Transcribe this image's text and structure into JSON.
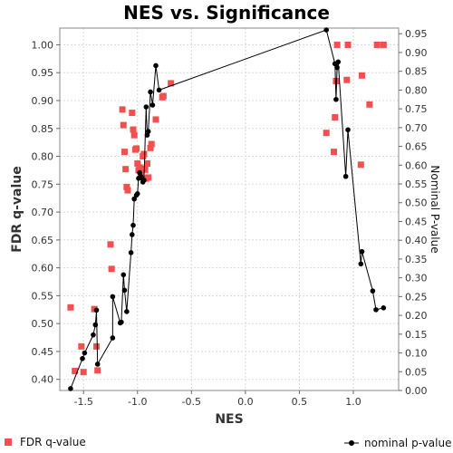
{
  "chart_data": {
    "type": "scatter",
    "title": "NES vs. Significance",
    "xlabel": "NES",
    "ylabel_left": "FDR q-value",
    "ylabel_right": "Nominal P-value",
    "xlim": [
      -1.72,
      1.42
    ],
    "ylim_left": [
      0.38,
      1.03
    ],
    "ylim_right": [
      0.0,
      0.965
    ],
    "xticks": [
      "-1.5",
      "-1.0",
      "-0.5",
      "0.0",
      "0.5",
      "1.0"
    ],
    "xtick_values": [
      -1.5,
      -1.0,
      -0.5,
      0.0,
      0.5,
      1.0
    ],
    "yticks_left": [
      "0.40",
      "0.45",
      "0.50",
      "0.55",
      "0.60",
      "0.65",
      "0.70",
      "0.75",
      "0.80",
      "0.85",
      "0.90",
      "0.95",
      "1.00"
    ],
    "ytick_left_values": [
      0.4,
      0.45,
      0.5,
      0.55,
      0.6,
      0.65,
      0.7,
      0.75,
      0.8,
      0.85,
      0.9,
      0.95,
      1.0
    ],
    "yticks_right": [
      "0.00",
      "0.05",
      "0.10",
      "0.15",
      "0.20",
      "0.25",
      "0.30",
      "0.35",
      "0.40",
      "0.45",
      "0.50",
      "0.55",
      "0.60",
      "0.65",
      "0.70",
      "0.75",
      "0.80",
      "0.85",
      "0.90",
      "0.95"
    ],
    "ytick_right_values": [
      0.0,
      0.05,
      0.1,
      0.15,
      0.2,
      0.25,
      0.3,
      0.35,
      0.4,
      0.45,
      0.5,
      0.55,
      0.6,
      0.65,
      0.7,
      0.75,
      0.8,
      0.85,
      0.9,
      0.95
    ],
    "grid": true,
    "legend_position": "bottom",
    "series": [
      {
        "name": "FDR q-value",
        "axis": "left",
        "style": "square-markers",
        "color": "#f05050",
        "points": [
          [
            -1.62,
            0.529
          ],
          [
            -1.58,
            0.415
          ],
          [
            -1.52,
            0.459
          ],
          [
            -1.5,
            0.413
          ],
          [
            -1.4,
            0.526
          ],
          [
            -1.38,
            0.459
          ],
          [
            -1.37,
            0.416
          ],
          [
            -1.25,
            0.642
          ],
          [
            -1.24,
            0.598
          ],
          [
            -1.14,
            0.884
          ],
          [
            -1.13,
            0.856
          ],
          [
            -1.12,
            0.808
          ],
          [
            -1.11,
            0.777
          ],
          [
            -1.1,
            0.745
          ],
          [
            -1.09,
            0.739
          ],
          [
            -1.05,
            0.878
          ],
          [
            -1.04,
            0.848
          ],
          [
            -1.03,
            0.838
          ],
          [
            -1.02,
            0.812
          ],
          [
            -1.01,
            0.814
          ],
          [
            -1.0,
            0.787
          ],
          [
            -0.99,
            0.775
          ],
          [
            -0.98,
            0.78
          ],
          [
            -0.97,
            0.77
          ],
          [
            -0.96,
            0.778
          ],
          [
            -0.95,
            0.8
          ],
          [
            -0.94,
            0.804
          ],
          [
            -0.93,
            0.776
          ],
          [
            -0.92,
            0.76
          ],
          [
            -0.91,
            0.787
          ],
          [
            -0.9,
            0.762
          ],
          [
            -0.88,
            0.815
          ],
          [
            -0.87,
            0.822
          ],
          [
            -0.83,
            0.866
          ],
          [
            -0.77,
            0.906
          ],
          [
            -0.76,
            0.908
          ],
          [
            -0.69,
            0.931
          ],
          [
            0.75,
            0.842
          ],
          [
            0.82,
            0.808
          ],
          [
            0.83,
            0.87
          ],
          [
            0.84,
            0.935
          ],
          [
            0.85,
            1.0
          ],
          [
            0.94,
            0.937
          ],
          [
            0.95,
            1.0
          ],
          [
            1.07,
            0.785
          ],
          [
            1.08,
            0.945
          ],
          [
            1.15,
            0.893
          ],
          [
            1.22,
            1.0
          ],
          [
            1.28,
            1.0
          ]
        ]
      },
      {
        "name": "nominal p-value",
        "axis": "right",
        "style": "line-circle-markers",
        "color": "#000000",
        "points": [
          [
            -1.62,
            0.005
          ],
          [
            -1.51,
            0.085
          ],
          [
            -1.49,
            0.1
          ],
          [
            -1.41,
            0.148
          ],
          [
            -1.39,
            0.175
          ],
          [
            -1.38,
            0.214
          ],
          [
            -1.37,
            0.07
          ],
          [
            -1.23,
            0.14
          ],
          [
            -1.23,
            0.25
          ],
          [
            -1.16,
            0.18
          ],
          [
            -1.15,
            0.182
          ],
          [
            -1.13,
            0.308
          ],
          [
            -1.12,
            0.267
          ],
          [
            -1.1,
            0.21
          ],
          [
            -1.06,
            0.367
          ],
          [
            -1.05,
            0.415
          ],
          [
            -1.04,
            0.44
          ],
          [
            -1.03,
            0.51
          ],
          [
            -1.01,
            0.52
          ],
          [
            -1.0,
            0.524
          ],
          [
            -0.99,
            0.565
          ],
          [
            -0.98,
            0.58
          ],
          [
            -0.97,
            0.57
          ],
          [
            -0.96,
            0.565
          ],
          [
            -0.95,
            0.555
          ],
          [
            -0.94,
            0.56
          ],
          [
            -0.92,
            0.755
          ],
          [
            -0.91,
            0.68
          ],
          [
            -0.9,
            0.69
          ],
          [
            -0.88,
            0.795
          ],
          [
            -0.86,
            0.76
          ],
          [
            -0.83,
            0.865
          ],
          [
            -0.8,
            0.8
          ],
          [
            0.75,
            0.96
          ],
          [
            0.83,
            0.87
          ],
          [
            0.84,
            0.775
          ],
          [
            0.85,
            0.86
          ],
          [
            0.86,
            0.875
          ],
          [
            0.93,
            0.57
          ],
          [
            0.95,
            0.694
          ],
          [
            1.07,
            0.337
          ],
          [
            1.08,
            0.37
          ],
          [
            1.18,
            0.265
          ],
          [
            1.21,
            0.215
          ],
          [
            1.28,
            0.22
          ]
        ]
      }
    ]
  }
}
